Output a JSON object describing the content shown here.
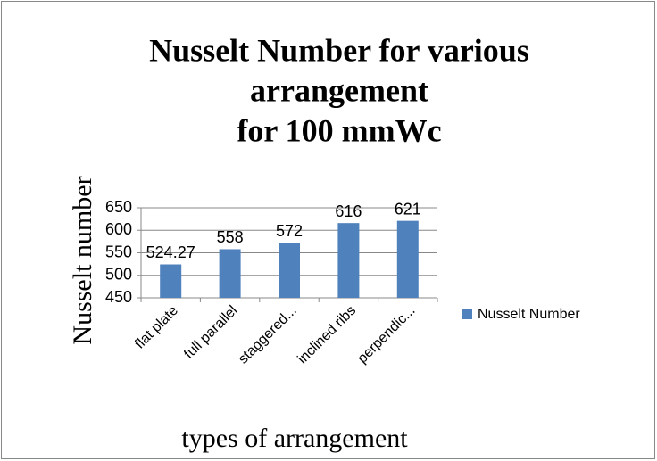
{
  "chart_data": {
    "type": "bar",
    "title": [
      "Nusselt Number for various",
      "arrangement",
      "for 100 mmWc"
    ],
    "x_label": "types of arrangement",
    "y_label": "Nusselt number",
    "categories": [
      "flat plate",
      "full parallel",
      "staggered...",
      "inclined ribs",
      "perpendic..."
    ],
    "series": [
      {
        "name": "Nusselt Number",
        "color": "#4f81bd",
        "values": [
          524.27,
          558,
          572,
          616,
          621
        ]
      }
    ],
    "ylim": [
      450,
      650
    ],
    "yticks": [
      450,
      500,
      550,
      600,
      650
    ],
    "grid": true,
    "legend": "right"
  }
}
